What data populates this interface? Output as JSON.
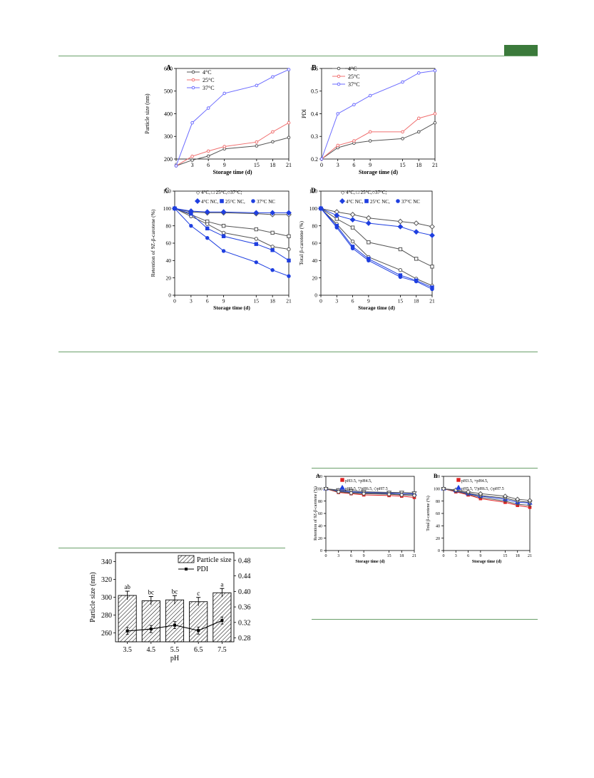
{
  "header": {
    "accent": "#3b7a3b",
    "rule_color": "#6aa06a"
  },
  "chart_data": [
    {
      "panel": "A",
      "type": "line",
      "x": [
        0,
        3,
        6,
        9,
        15,
        18,
        21
      ],
      "xticks": [
        "0",
        "3",
        "6",
        "9",
        "15",
        "18",
        "21"
      ],
      "xlabel": "Storage time (d)",
      "ylabel": "Particle size (nm)",
      "ylim": [
        200,
        600
      ],
      "yticks": [
        "200",
        "300",
        "400",
        "500",
        "600"
      ],
      "legend": "top-left",
      "series": [
        {
          "name": "4°C",
          "color": "#555555",
          "marker": "circle-open",
          "values": [
            170,
            195,
            213,
            245,
            258,
            276,
            295
          ]
        },
        {
          "name": "25°C",
          "color": "#f07070",
          "marker": "circle-open",
          "values": [
            170,
            212,
            235,
            255,
            275,
            320,
            360
          ]
        },
        {
          "name": "37°C",
          "color": "#6b6bff",
          "marker": "circle-open",
          "values": [
            170,
            360,
            425,
            490,
            525,
            563,
            595
          ]
        }
      ]
    },
    {
      "panel": "B",
      "type": "line",
      "x": [
        0,
        3,
        6,
        9,
        15,
        18,
        21
      ],
      "xticks": [
        "0",
        "3",
        "6",
        "9",
        "15",
        "18",
        "21"
      ],
      "xlabel": "Storage time (d)",
      "ylabel": "PDI",
      "ylim": [
        0.2,
        0.6
      ],
      "yticks": [
        "0.2",
        "0.3",
        "0.4",
        "0.5",
        "0.6"
      ],
      "legend": "top-left",
      "series": [
        {
          "name": "4°C",
          "color": "#555555",
          "marker": "circle-open",
          "values": [
            0.2,
            0.25,
            0.27,
            0.28,
            0.29,
            0.32,
            0.36
          ]
        },
        {
          "name": "25°C",
          "color": "#f07070",
          "marker": "circle-open",
          "values": [
            0.2,
            0.26,
            0.28,
            0.32,
            0.32,
            0.38,
            0.4
          ]
        },
        {
          "name": "37°C",
          "color": "#6b6bff",
          "marker": "circle-open",
          "values": [
            0.2,
            0.4,
            0.44,
            0.48,
            0.54,
            0.58,
            0.59
          ]
        }
      ]
    },
    {
      "panel": "C",
      "type": "line",
      "x": [
        0,
        3,
        6,
        9,
        15,
        18,
        21
      ],
      "xticks": [
        "0",
        "3",
        "6",
        "9",
        "15",
        "18",
        "21"
      ],
      "xlabel": "Storage time (d)",
      "ylabel": "Retention of 9Z-β-carotene (%)",
      "ylim": [
        0,
        120
      ],
      "yticks": [
        "0",
        "20",
        "40",
        "60",
        "80",
        "100",
        "120"
      ],
      "legend_line1": "◇ 4°C, □ 25°C,○37°C;",
      "legend_line2": [
        "4°C NC,",
        "25°C NC,",
        "37°C NC"
      ],
      "series": [
        {
          "name": "4°C",
          "color": "#555555",
          "marker": "diamond-open",
          "values": [
            100,
            96,
            95,
            95,
            94,
            93,
            93
          ]
        },
        {
          "name": "25°C",
          "color": "#555555",
          "marker": "square-open",
          "values": [
            100,
            93,
            85,
            80,
            76,
            72,
            68
          ]
        },
        {
          "name": "37°C",
          "color": "#555555",
          "marker": "circle-open",
          "values": [
            100,
            91,
            82,
            72,
            65,
            56,
            53
          ]
        },
        {
          "name": "4°C NC",
          "color": "#1f3fe0",
          "marker": "diamond",
          "values": [
            100,
            97,
            96,
            96,
            95,
            95,
            95
          ]
        },
        {
          "name": "25°C NC",
          "color": "#1f3fe0",
          "marker": "square",
          "values": [
            100,
            94,
            77,
            68,
            59,
            52,
            40
          ]
        },
        {
          "name": "37°C NC",
          "color": "#1f3fe0",
          "marker": "circle",
          "values": [
            100,
            80,
            66,
            51,
            38,
            29,
            22
          ]
        }
      ]
    },
    {
      "panel": "D",
      "type": "line",
      "x": [
        0,
        3,
        6,
        9,
        15,
        18,
        21
      ],
      "xticks": [
        "0",
        "3",
        "6",
        "9",
        "15",
        "18",
        "21"
      ],
      "xlabel": "Storage time (d)",
      "ylabel": "Total β-carotene (%)",
      "ylim": [
        0,
        120
      ],
      "yticks": [
        "0",
        "20",
        "40",
        "60",
        "80",
        "100",
        "120"
      ],
      "legend_line1": "◇ 4°C, □ 25°C,○37°C;",
      "legend_line2": [
        "4°C NC,",
        "25°C NC,",
        "37°C NC"
      ],
      "series": [
        {
          "name": "4°C",
          "color": "#555555",
          "marker": "diamond-open",
          "values": [
            100,
            96,
            93,
            89,
            85,
            83,
            79
          ]
        },
        {
          "name": "25°C",
          "color": "#555555",
          "marker": "square-open",
          "values": [
            100,
            88,
            78,
            61,
            53,
            42,
            33
          ]
        },
        {
          "name": "37°C",
          "color": "#555555",
          "marker": "circle-open",
          "values": [
            100,
            82,
            62,
            44,
            29,
            19,
            11
          ]
        },
        {
          "name": "4°C NC",
          "color": "#1f3fe0",
          "marker": "diamond",
          "values": [
            100,
            92,
            87,
            83,
            79,
            73,
            69
          ]
        },
        {
          "name": "25°C NC",
          "color": "#1f3fe0",
          "marker": "square",
          "values": [
            100,
            80,
            56,
            42,
            23,
            17,
            9
          ]
        },
        {
          "name": "37°C NC",
          "color": "#1f3fe0",
          "marker": "circle",
          "values": [
            100,
            78,
            54,
            40,
            21,
            16,
            7
          ]
        }
      ]
    },
    {
      "panel": "",
      "type": "bar",
      "categories": [
        "3.5",
        "4.5",
        "5.5",
        "6.5",
        "7.5"
      ],
      "xlabel": "pH",
      "ylabel": "Particle size (nm)",
      "ylim": [
        250,
        350
      ],
      "yticks": [
        "260",
        "280",
        "300",
        "320",
        "340"
      ],
      "y2lim": [
        0.27,
        0.5
      ],
      "y2ticks": [
        "0.28",
        "0.32",
        "0.36",
        "0.40",
        "0.44",
        "0.48"
      ],
      "legend": [
        "Particle size",
        "PDI"
      ],
      "series": [
        {
          "name": "Particle size",
          "values": [
            302,
            296,
            297,
            295,
            305
          ],
          "letters": [
            "ab",
            "bc",
            "bc",
            "c",
            "a"
          ]
        },
        {
          "name": "PDI",
          "values": [
            0.298,
            0.303,
            0.313,
            0.299,
            0.325
          ]
        }
      ]
    },
    {
      "panel": "A",
      "type": "line",
      "x": [
        0,
        3,
        6,
        9,
        15,
        18,
        21
      ],
      "xticks": [
        "0",
        "3",
        "6",
        "9",
        "15",
        "18",
        "21"
      ],
      "xlabel": "Storage time (d)",
      "ylabel": "Retention of 9Z-β-carotene (%)",
      "ylim": [
        0,
        120
      ],
      "yticks": [
        "0",
        "20",
        "40",
        "60",
        "80",
        "100",
        "120"
      ],
      "legend_line1": "pH3.5, ×pH4.5,",
      "legend_line2": "pH5.5, ▽pH6.5, ◇pH7.5",
      "series": [
        {
          "name": "pH3.5",
          "color": "#e02020",
          "marker": "square",
          "values": [
            100,
            94,
            92,
            90,
            89,
            88,
            86
          ]
        },
        {
          "name": "pH4.5",
          "color": "#555555",
          "marker": "cross",
          "values": [
            100,
            96,
            94,
            93,
            92,
            91,
            91
          ]
        },
        {
          "name": "pH5.5",
          "color": "#2040e0",
          "marker": "triangle",
          "values": [
            100,
            97,
            95,
            94,
            93,
            92,
            92
          ]
        },
        {
          "name": "pH6.5",
          "color": "#555555",
          "marker": "tri-down",
          "values": [
            100,
            98,
            97,
            95,
            94,
            94,
            93
          ]
        },
        {
          "name": "pH7.5",
          "color": "#555555",
          "marker": "diamond-open",
          "values": [
            100,
            95,
            93,
            92,
            91,
            90,
            89
          ]
        }
      ]
    },
    {
      "panel": "B",
      "type": "line",
      "x": [
        0,
        3,
        6,
        9,
        15,
        18,
        21
      ],
      "xticks": [
        "0",
        "3",
        "6",
        "9",
        "15",
        "18",
        "21"
      ],
      "xlabel": "Storage time (d)",
      "ylabel": "Total β-carotene (%)",
      "ylim": [
        0,
        120
      ],
      "yticks": [
        "0",
        "20",
        "40",
        "60",
        "80",
        "100",
        "120"
      ],
      "legend_line1": "pH3.5, ×pH4.5,",
      "legend_line2": "pH5.5, ▽pH6.5, ◇pH7.5",
      "series": [
        {
          "name": "pH3.5",
          "color": "#e02020",
          "marker": "square",
          "values": [
            100,
            95,
            90,
            84,
            78,
            73,
            70
          ]
        },
        {
          "name": "pH4.5",
          "color": "#555555",
          "marker": "cross",
          "values": [
            100,
            96,
            91,
            86,
            80,
            75,
            73
          ]
        },
        {
          "name": "pH5.5",
          "color": "#2040e0",
          "marker": "triangle",
          "values": [
            100,
            97,
            92,
            88,
            83,
            78,
            77
          ]
        },
        {
          "name": "pH6.5",
          "color": "#555555",
          "marker": "tri-down",
          "values": [
            100,
            97,
            93,
            89,
            85,
            80,
            78
          ]
        },
        {
          "name": "pH7.5",
          "color": "#555555",
          "marker": "diamond-open",
          "values": [
            100,
            98,
            95,
            92,
            88,
            83,
            81
          ]
        }
      ]
    }
  ]
}
